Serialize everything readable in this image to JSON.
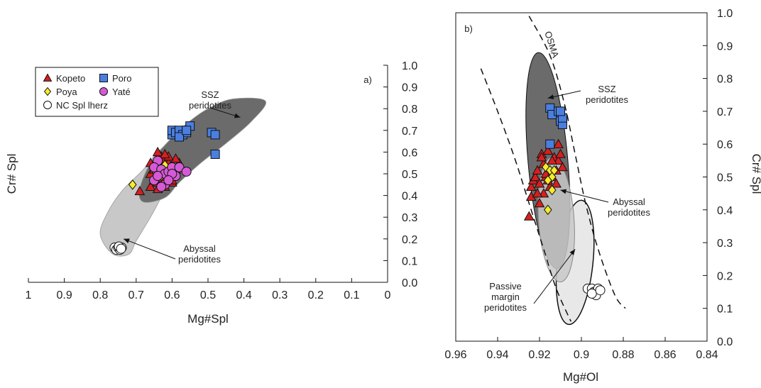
{
  "chart_data": [
    {
      "panel": "a",
      "type": "scatter",
      "panel_label": "a)",
      "xlabel": "Mg#Spl",
      "ylabel": "Cr# Spl",
      "xlim": [
        1.0,
        0.0
      ],
      "ylim": [
        0.0,
        1.0
      ],
      "x_reversed": true,
      "xticks": [
        "1",
        "0.9",
        "0.8",
        "0.7",
        "0.6",
        "0.5",
        "0.4",
        "0.3",
        "0.2",
        "0.1",
        "0"
      ],
      "yticks": [
        "0.0",
        "0.1",
        "0.2",
        "0.3",
        "0.4",
        "0.5",
        "0.6",
        "0.7",
        "0.8",
        "0.9",
        "1.0"
      ],
      "y_axis_side": "right",
      "legend_position": "top-left",
      "fields": [
        {
          "label": [
            "SSZ",
            "peridotites"
          ],
          "color": "#6b6b6b",
          "outline": [
            [
              0.43,
              0.845
            ],
            [
              0.34,
              0.835
            ],
            [
              0.38,
              0.74
            ],
            [
              0.45,
              0.64
            ],
            [
              0.52,
              0.55
            ],
            [
              0.58,
              0.46
            ],
            [
              0.62,
              0.39
            ],
            [
              0.68,
              0.37
            ],
            [
              0.69,
              0.43
            ],
            [
              0.66,
              0.55
            ],
            [
              0.61,
              0.65
            ],
            [
              0.56,
              0.73
            ],
            [
              0.5,
              0.8
            ]
          ]
        },
        {
          "label": [
            "Abyssal",
            "peridotites"
          ],
          "color": "#c8c8c8",
          "outline": [
            [
              0.59,
              0.66
            ],
            [
              0.54,
              0.64
            ],
            [
              0.58,
              0.52
            ],
            [
              0.62,
              0.42
            ],
            [
              0.66,
              0.3
            ],
            [
              0.7,
              0.19
            ],
            [
              0.72,
              0.13
            ],
            [
              0.765,
              0.13
            ],
            [
              0.8,
              0.22
            ],
            [
              0.78,
              0.32
            ],
            [
              0.74,
              0.42
            ],
            [
              0.68,
              0.52
            ],
            [
              0.64,
              0.6
            ]
          ]
        }
      ],
      "series": [
        {
          "name": "Kopeto",
          "marker": "triangle",
          "color": "#d42020",
          "x": [
            0.57,
            0.56,
            0.69,
            0.66,
            0.64,
            0.63,
            0.62,
            0.61,
            0.6,
            0.59,
            0.58,
            0.65,
            0.64,
            0.63,
            0.62,
            0.61,
            0.6,
            0.66,
            0.65,
            0.63,
            0.62,
            0.61,
            0.59,
            0.64,
            0.63,
            0.62,
            0.6,
            0.66,
            0.64,
            0.63,
            0.61,
            0.62,
            0.63,
            0.6,
            0.65,
            0.64
          ],
          "y": [
            0.69,
            0.7,
            0.42,
            0.44,
            0.46,
            0.47,
            0.48,
            0.47,
            0.5,
            0.52,
            0.55,
            0.54,
            0.56,
            0.58,
            0.57,
            0.55,
            0.53,
            0.5,
            0.52,
            0.51,
            0.53,
            0.5,
            0.57,
            0.49,
            0.45,
            0.44,
            0.46,
            0.55,
            0.6,
            0.48,
            0.58,
            0.59,
            0.53,
            0.47,
            0.47,
            0.43
          ]
        },
        {
          "name": "Poro",
          "marker": "square",
          "color": "#4a7fe0",
          "x": [
            0.6,
            0.6,
            0.59,
            0.58,
            0.57,
            0.56,
            0.55,
            0.49,
            0.48,
            0.48,
            0.58,
            0.56
          ],
          "y": [
            0.68,
            0.7,
            0.69,
            0.7,
            0.68,
            0.69,
            0.72,
            0.69,
            0.68,
            0.59,
            0.67,
            0.7
          ]
        },
        {
          "name": "Poya",
          "marker": "diamond",
          "color": "#f5ec2a",
          "x": [
            0.71,
            0.65,
            0.64,
            0.63,
            0.62,
            0.61
          ],
          "y": [
            0.45,
            0.52,
            0.5,
            0.49,
            0.54,
            0.51
          ]
        },
        {
          "name": "Yaté",
          "marker": "circle",
          "color": "#d65ad6",
          "x": [
            0.64,
            0.65,
            0.63,
            0.62,
            0.61,
            0.6,
            0.59,
            0.58,
            0.56,
            0.65,
            0.64,
            0.62,
            0.6,
            0.63,
            0.61
          ],
          "y": [
            0.56,
            0.53,
            0.52,
            0.5,
            0.51,
            0.53,
            0.49,
            0.53,
            0.51,
            0.47,
            0.49,
            0.45,
            0.5,
            0.44,
            0.47
          ]
        },
        {
          "name": "NC Spl lherz",
          "marker": "circle",
          "color": "#ffffff",
          "x": [
            0.76,
            0.755,
            0.75,
            0.745,
            0.74,
            0.748,
            0.742
          ],
          "y": [
            0.16,
            0.15,
            0.16,
            0.15,
            0.16,
            0.165,
            0.155
          ]
        }
      ],
      "legend": [
        {
          "series": "Kopeto",
          "row": 0,
          "col": 0
        },
        {
          "series": "Poro",
          "row": 0,
          "col": 1
        },
        {
          "series": "Poya",
          "row": 1,
          "col": 0
        },
        {
          "series": "Yaté",
          "row": 1,
          "col": 1
        },
        {
          "series": "NC Spl lherz",
          "row": 2,
          "col": 0
        }
      ],
      "annotations": [
        {
          "text_field": 0,
          "arrow_to": [
            0.41,
            0.76
          ]
        },
        {
          "text_field": 1,
          "arrow_to": [
            0.735,
            0.2
          ]
        }
      ]
    },
    {
      "panel": "b",
      "type": "scatter",
      "panel_label": "b)",
      "xlabel": "Mg#Ol",
      "ylabel": "Cr# Spl",
      "xlim": [
        0.96,
        0.84
      ],
      "ylim": [
        0.0,
        1.0
      ],
      "x_reversed": true,
      "xticks": [
        "0.96",
        "0.94",
        "0.92",
        "0.9",
        "0.88",
        "0.86",
        "0.84"
      ],
      "yticks": [
        "0.0",
        "0.1",
        "0.2",
        "0.3",
        "0.4",
        "0.5",
        "0.6",
        "0.7",
        "0.8",
        "0.9",
        "1.0"
      ],
      "y_axis_side": "right",
      "osma_label": "OSMA",
      "fields": [
        {
          "label": [
            "SSZ",
            "peridotites"
          ],
          "color": "#6b6b6b",
          "center": [
            0.916,
            0.55
          ],
          "rx": 0.0095,
          "ry": 0.33,
          "tilt": -5
        },
        {
          "label": [
            "Abyssal",
            "peridotites"
          ],
          "color": "#c8c8c8",
          "center": [
            0.912,
            0.37
          ],
          "rx": 0.0085,
          "ry": 0.19,
          "tilt": -4
        },
        {
          "label": [
            "Passive",
            "margin",
            "peridotites"
          ],
          "color": "#e8e8e8",
          "center": [
            0.903,
            0.24
          ],
          "rx": 0.0085,
          "ry": 0.19,
          "tilt": 6
        }
      ],
      "osma_band": {
        "left": [
          [
            0.948,
            0.83
          ],
          [
            0.94,
            0.7
          ],
          [
            0.932,
            0.56
          ],
          [
            0.925,
            0.42
          ],
          [
            0.918,
            0.28
          ],
          [
            0.912,
            0.16
          ],
          [
            0.905,
            0.06
          ]
        ],
        "right": [
          [
            0.925,
            0.99
          ],
          [
            0.915,
            0.87
          ],
          [
            0.908,
            0.72
          ],
          [
            0.903,
            0.57
          ],
          [
            0.898,
            0.42
          ],
          [
            0.892,
            0.28
          ],
          [
            0.884,
            0.14
          ],
          [
            0.879,
            0.1
          ]
        ]
      },
      "series": [
        {
          "name": "Kopeto",
          "marker": "triangle",
          "color": "#d42020",
          "x": [
            0.925,
            0.924,
            0.923,
            0.922,
            0.921,
            0.92,
            0.919,
            0.918,
            0.917,
            0.916,
            0.915,
            0.914,
            0.913,
            0.912,
            0.911,
            0.91,
            0.909,
            0.92,
            0.918,
            0.915,
            0.912,
            0.924,
            0.921,
            0.917,
            0.914,
            0.911,
            0.919,
            0.916
          ],
          "y": [
            0.38,
            0.47,
            0.49,
            0.5,
            0.52,
            0.48,
            0.57,
            0.54,
            0.5,
            0.58,
            0.52,
            0.5,
            0.56,
            0.48,
            0.55,
            0.57,
            0.53,
            0.42,
            0.45,
            0.47,
            0.52,
            0.44,
            0.45,
            0.51,
            0.55,
            0.6,
            0.56,
            0.49
          ]
        },
        {
          "name": "Poro",
          "marker": "square",
          "color": "#4a7fe0",
          "x": [
            0.915,
            0.914,
            0.911,
            0.91,
            0.91,
            0.909,
            0.909,
            0.91,
            0.915
          ],
          "y": [
            0.71,
            0.69,
            0.7,
            0.69,
            0.67,
            0.66,
            0.68,
            0.7,
            0.6
          ]
        },
        {
          "name": "Poya",
          "marker": "diamond",
          "color": "#f5ec2a",
          "x": [
            0.917,
            0.915,
            0.914,
            0.916,
            0.914,
            0.916,
            0.913
          ],
          "y": [
            0.53,
            0.52,
            0.5,
            0.49,
            0.46,
            0.4,
            0.52
          ]
        },
        {
          "name": "NC Spl lherz",
          "marker": "circle",
          "color": "#ffffff",
          "x": [
            0.897,
            0.895,
            0.894,
            0.893,
            0.892,
            0.893,
            0.895,
            0.891
          ],
          "y": [
            0.16,
            0.16,
            0.15,
            0.15,
            0.16,
            0.14,
            0.145,
            0.155
          ]
        }
      ],
      "annotations": [
        {
          "text_field": 0,
          "arrow_to": [
            0.916,
            0.74
          ]
        },
        {
          "text_field": 1,
          "arrow_to": [
            0.91,
            0.46
          ]
        },
        {
          "text_field": 2,
          "arrow_to": [
            0.903,
            0.28
          ]
        }
      ]
    }
  ]
}
